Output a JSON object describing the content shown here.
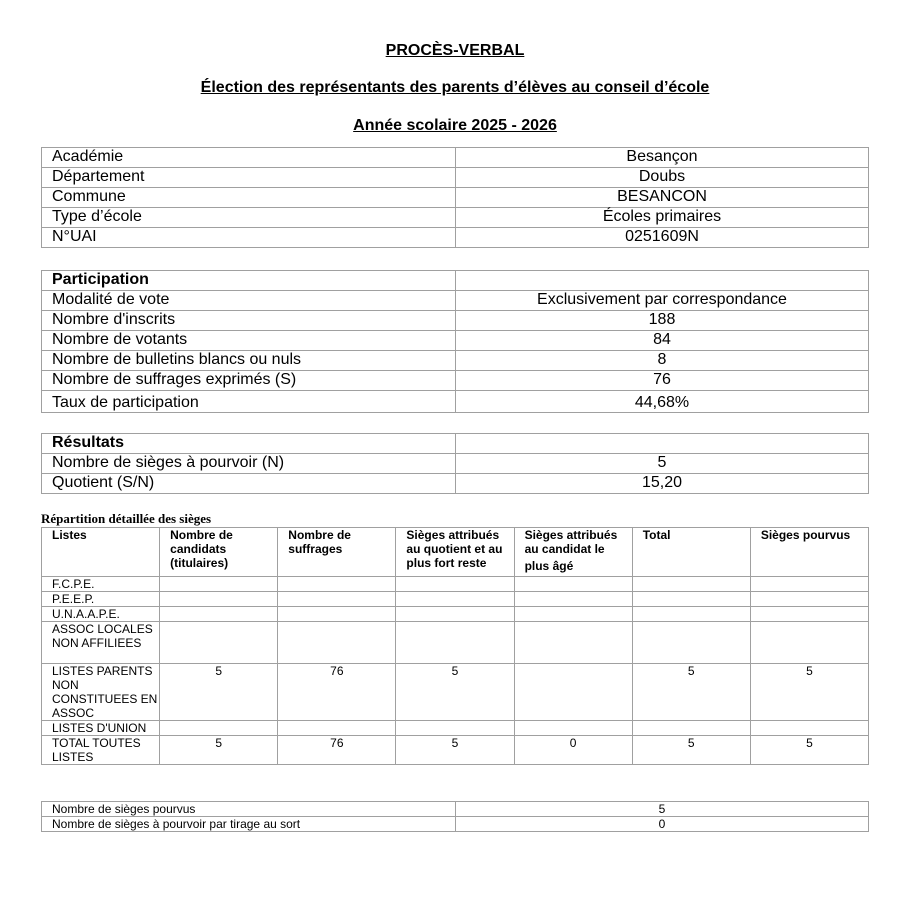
{
  "header": {
    "title": "PROCÈS-VERBAL",
    "subtitle": "Élection des représentants des parents d’élèves au conseil d’école",
    "year": "Année scolaire 2025 - 2026"
  },
  "school": [
    {
      "label": "Académie",
      "value": "Besançon"
    },
    {
      "label": "Département",
      "value": "Doubs"
    },
    {
      "label": "Commune",
      "value": "BESANCON"
    },
    {
      "label": "Type d’école",
      "value": "Écoles primaires"
    },
    {
      "label": "N°UAI",
      "value": "0251609N"
    }
  ],
  "participation": {
    "heading": "Participation",
    "rows": [
      {
        "label": "Modalité de vote",
        "value": "Exclusivement par correspondance"
      },
      {
        "label": "Nombre d'inscrits",
        "value": "188"
      },
      {
        "label": "Nombre de votants",
        "value": "84"
      },
      {
        "label": "Nombre de bulletins blancs ou nuls",
        "value": "8"
      },
      {
        "label": "Nombre de suffrages exprimés (S)",
        "value": "76"
      },
      {
        "label": "Taux de participation",
        "value": "44,68%"
      }
    ]
  },
  "resultats": {
    "heading": "Résultats",
    "rows": [
      {
        "label": "Nombre de sièges à pourvoir (N)",
        "value": "5"
      },
      {
        "label": "Quotient (S/N)",
        "value": "15,20"
      }
    ]
  },
  "detail": {
    "title": "Répartition détaillée des sièges",
    "columns": [
      "Listes",
      "Nombre de candidats (titulaires)",
      "Nombre de suffrages",
      "Sièges attribués au quotient et au plus fort reste",
      "Sièges attribués au candidat le",
      "plus âgé",
      "Total",
      "Sièges pourvus"
    ],
    "rows": [
      [
        "F.C.P.E.",
        "",
        "",
        "",
        "",
        "",
        ""
      ],
      [
        "P.E.E.P.",
        "",
        "",
        "",
        "",
        "",
        ""
      ],
      [
        "U.N.A.A.P.E.",
        "",
        "",
        "",
        "",
        "",
        ""
      ],
      [
        "ASSOC LOCALES NON AFFILIEES",
        "",
        "",
        "",
        "",
        "",
        ""
      ],
      [
        "LISTES PARENTS NON CONSTITUEES EN ASSOC",
        "5",
        "76",
        "5",
        "",
        "5",
        "5"
      ],
      [
        "LISTES D'UNION",
        "",
        "",
        "",
        "",
        "",
        ""
      ],
      [
        "TOTAL TOUTES LISTES",
        "5",
        "76",
        "5",
        "0",
        "5",
        "5"
      ]
    ]
  },
  "summary": [
    {
      "label": "Nombre de sièges pourvus",
      "value": "5"
    },
    {
      "label": "Nombre de sièges à pourvoir par tirage au sort",
      "value": "0"
    }
  ]
}
